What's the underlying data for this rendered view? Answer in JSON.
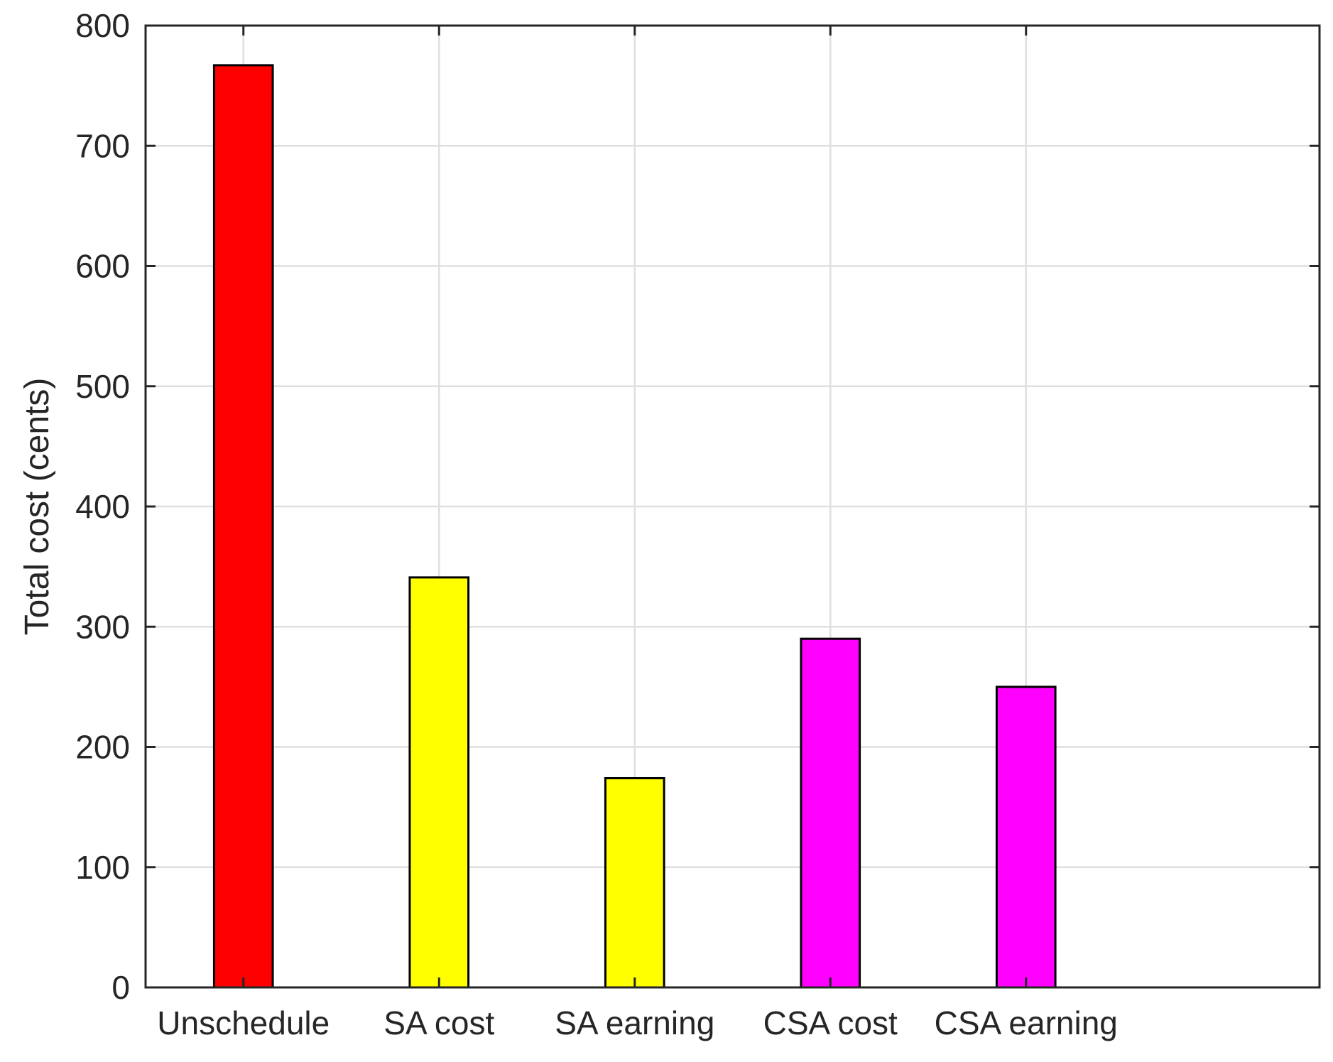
{
  "chart_data": {
    "type": "bar",
    "title": "",
    "xlabel": "",
    "ylabel": "Total cost (cents)",
    "categories": [
      "Unschedule",
      "SA cost",
      "SA earning",
      "CSA cost",
      "CSA earning"
    ],
    "values": [
      767,
      341,
      174,
      290,
      250
    ],
    "bar_colors": [
      "#ff0000",
      "#ffff00",
      "#ffff00",
      "#ff00ff",
      "#ff00ff"
    ],
    "ylim": [
      0,
      800
    ],
    "yticks": [
      0,
      100,
      200,
      300,
      400,
      500,
      600,
      700,
      800
    ],
    "grid": true
  }
}
